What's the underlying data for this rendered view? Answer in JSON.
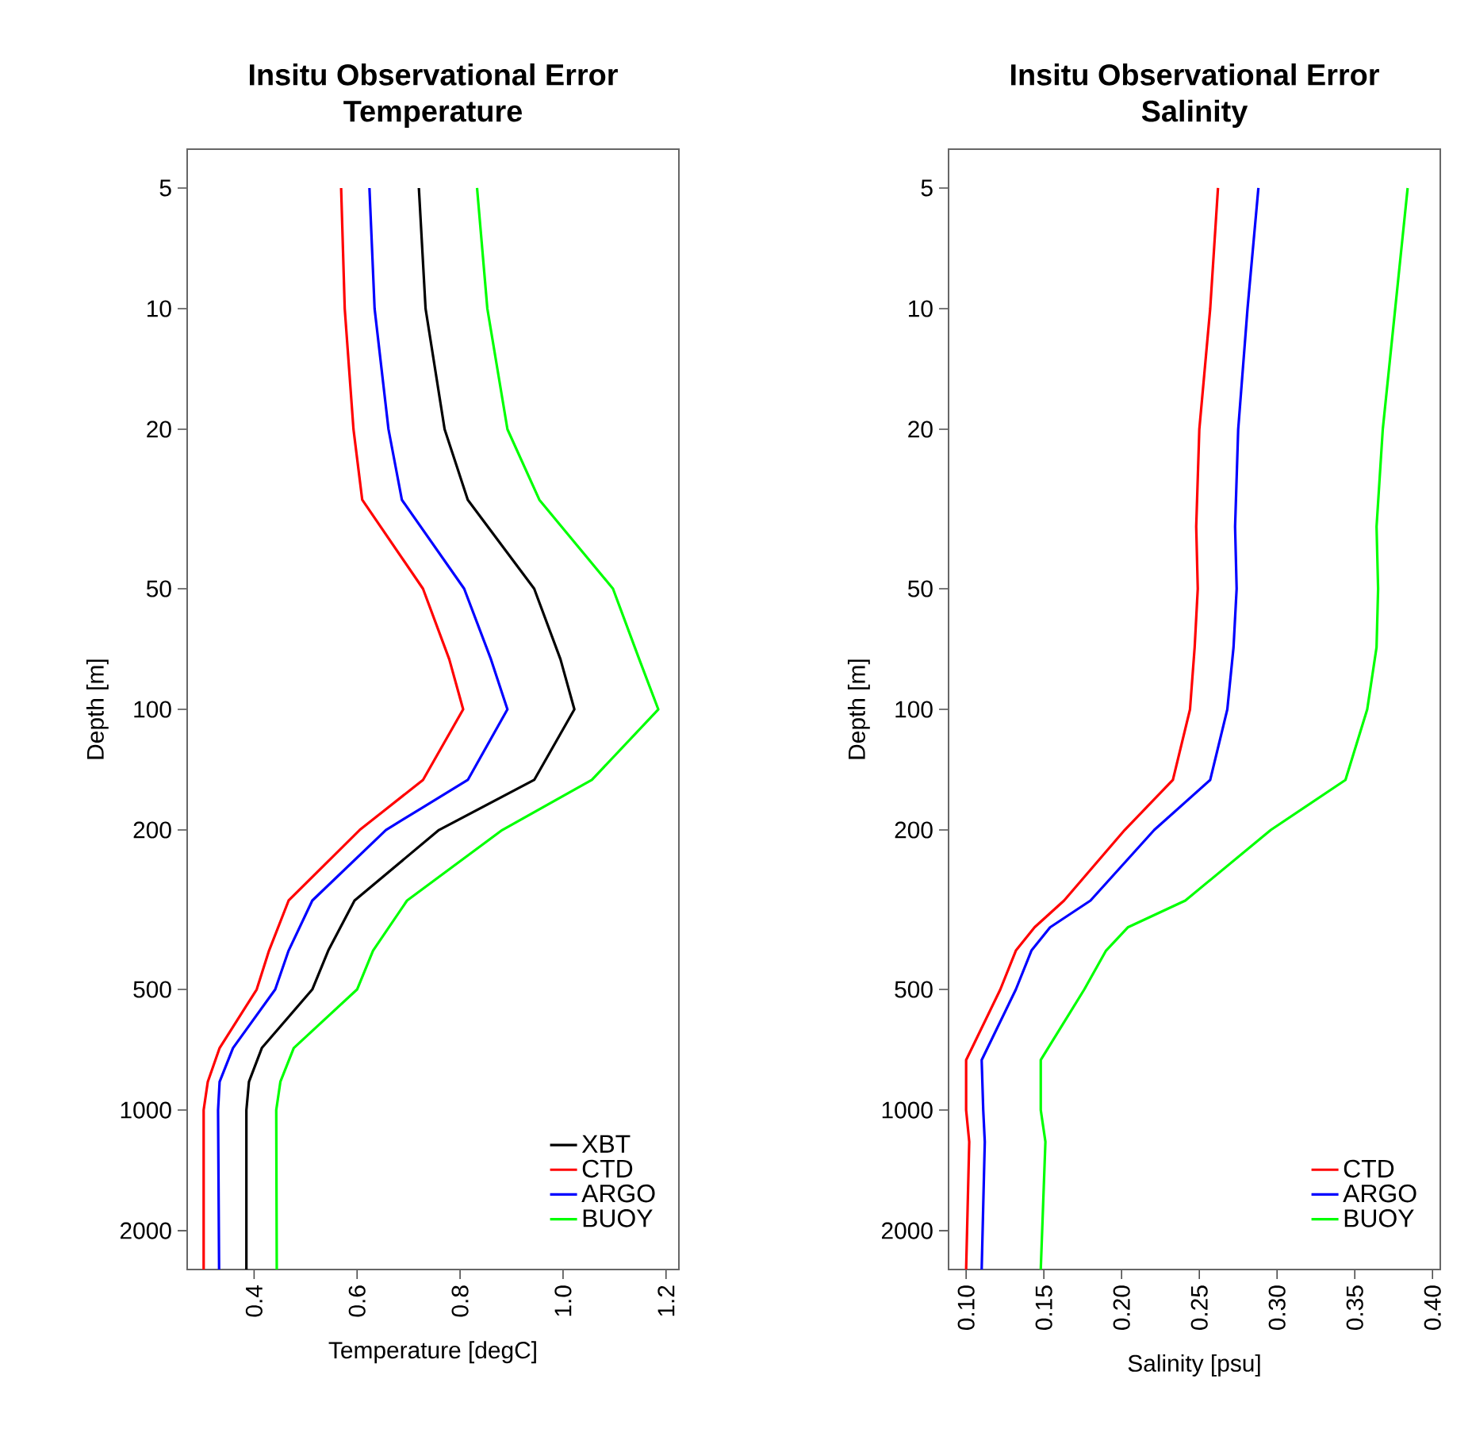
{
  "chart_data": [
    {
      "type": "line",
      "title": "Insitu Observational Error\nTemperature",
      "xlabel": "Temperature [degC]",
      "ylabel": "Depth [m]",
      "log": "y",
      "ylim": [
        2500,
        4
      ],
      "yticks": [
        5,
        10,
        20,
        50,
        100,
        200,
        500,
        1000,
        2000
      ],
      "xlim": [
        0.27,
        1.225
      ],
      "xticks": [
        0.4,
        0.6,
        0.8,
        {
          "value": 1.0,
          "label": "1.0"
        },
        1.2
      ],
      "grid": false,
      "legend": "bottom right",
      "marker": "none",
      "line_style": "solid",
      "series": [
        {
          "name": "XBT",
          "color": "#000000",
          "x": [
            0.72,
            0.733,
            0.77,
            0.815,
            0.944,
            0.995,
            1.022,
            0.944,
            0.759,
            0.595,
            0.544,
            0.513,
            0.415,
            0.39,
            0.385,
            0.385
          ],
          "values": [
            5,
            10,
            20,
            30,
            50,
            75,
            100,
            150,
            200,
            300,
            400,
            500,
            700,
            850,
            1000,
            2500
          ]
        },
        {
          "name": "CTD",
          "color": "#ff0000",
          "x": [
            0.569,
            0.576,
            0.593,
            0.61,
            0.728,
            0.779,
            0.806,
            0.728,
            0.605,
            0.467,
            0.429,
            0.405,
            0.333,
            0.31,
            0.302,
            0.302
          ],
          "values": [
            5,
            10,
            20,
            30,
            50,
            75,
            100,
            150,
            200,
            300,
            400,
            500,
            700,
            850,
            1000,
            2500
          ]
        },
        {
          "name": "ARGO",
          "color": "#0000ff",
          "x": [
            0.624,
            0.634,
            0.661,
            0.687,
            0.808,
            0.86,
            0.892,
            0.815,
            0.656,
            0.513,
            0.467,
            0.441,
            0.359,
            0.333,
            0.33,
            0.332
          ],
          "values": [
            5,
            10,
            20,
            30,
            50,
            75,
            100,
            150,
            200,
            300,
            400,
            500,
            700,
            850,
            1000,
            2500
          ]
        },
        {
          "name": "BUOY",
          "color": "#00ff00",
          "x": [
            0.833,
            0.853,
            0.892,
            0.954,
            1.097,
            1.148,
            1.185,
            1.056,
            0.882,
            0.697,
            0.631,
            0.6,
            0.477,
            0.451,
            0.443,
            0.444
          ],
          "values": [
            5,
            10,
            20,
            30,
            50,
            75,
            100,
            150,
            200,
            300,
            400,
            500,
            700,
            850,
            1000,
            2500
          ]
        }
      ]
    },
    {
      "type": "line",
      "title": "Insitu Observational Error\nSalinity",
      "xlabel": "Salinity [psu]",
      "ylabel": "Depth [m]",
      "log": "y",
      "ylim": [
        2500,
        4
      ],
      "yticks": [
        5,
        10,
        20,
        50,
        100,
        200,
        500,
        1000,
        2000
      ],
      "xlim": [
        0.0887,
        0.405
      ],
      "xticks": [
        {
          "value": 0.1,
          "label": "0.10"
        },
        {
          "value": 0.15,
          "label": "0.15"
        },
        {
          "value": 0.2,
          "label": "0.20"
        },
        {
          "value": 0.25,
          "label": "0.25"
        },
        {
          "value": 0.3,
          "label": "0.30"
        },
        {
          "value": 0.35,
          "label": "0.35"
        },
        {
          "value": 0.4,
          "label": "0.40"
        }
      ],
      "grid": false,
      "legend": "bottom right",
      "marker": "none",
      "line_style": "solid",
      "series": [
        {
          "name": "CTD",
          "color": "#ff0000",
          "x": [
            0.262,
            0.257,
            0.25,
            0.248,
            0.249,
            0.247,
            0.244,
            0.233,
            0.202,
            0.163,
            0.144,
            0.132,
            0.122,
            0.1,
            0.1,
            0.102,
            0.1
          ],
          "values": [
            5,
            10,
            20,
            35,
            50,
            70,
            100,
            150,
            200,
            300,
            350,
            400,
            500,
            750,
            1000,
            1200,
            2500
          ]
        },
        {
          "name": "ARGO",
          "color": "#0000ff",
          "x": [
            0.288,
            0.281,
            0.275,
            0.273,
            0.274,
            0.272,
            0.268,
            0.257,
            0.221,
            0.18,
            0.154,
            0.142,
            0.132,
            0.11,
            0.111,
            0.112,
            0.11
          ],
          "values": [
            5,
            10,
            20,
            35,
            50,
            70,
            100,
            150,
            200,
            300,
            350,
            400,
            500,
            750,
            1000,
            1200,
            2500
          ]
        },
        {
          "name": "BUOY",
          "color": "#00ff00",
          "x": [
            0.384,
            0.376,
            0.368,
            0.364,
            0.365,
            0.364,
            0.358,
            0.344,
            0.296,
            0.241,
            0.204,
            0.19,
            0.176,
            0.148,
            0.148,
            0.151,
            0.148
          ],
          "values": [
            5,
            10,
            20,
            35,
            50,
            70,
            100,
            150,
            200,
            300,
            350,
            400,
            500,
            750,
            1000,
            1200,
            2500
          ]
        }
      ]
    }
  ]
}
